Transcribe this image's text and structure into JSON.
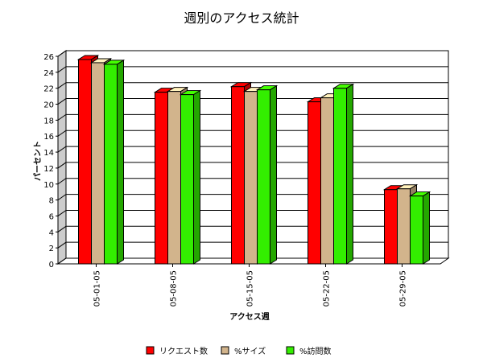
{
  "chart_data": {
    "type": "bar3d",
    "title": "週別のアクセス統計",
    "x_label": "アクセス週",
    "y_label": "パーセント",
    "categories": [
      "05-01-05",
      "05-08-05",
      "05-15-05",
      "05-22-05",
      "05-29-05"
    ],
    "series": [
      {
        "name": "リクエスト数",
        "color": "#ff0000",
        "values": [
          25.6,
          21.5,
          22.2,
          20.3,
          9.3
        ]
      },
      {
        "name": "%サイズ",
        "color": "#d2b48c",
        "values": [
          25.2,
          21.6,
          21.6,
          20.8,
          9.4
        ]
      },
      {
        "name": "%訪問数",
        "color": "#33ee00",
        "values": [
          25.0,
          21.2,
          21.8,
          22.0,
          8.5
        ]
      }
    ],
    "ylim": [
      0,
      26
    ],
    "yticks": [
      0,
      2,
      4,
      6,
      8,
      10,
      12,
      14,
      16,
      18,
      20,
      22,
      24,
      26
    ],
    "grid": true
  }
}
